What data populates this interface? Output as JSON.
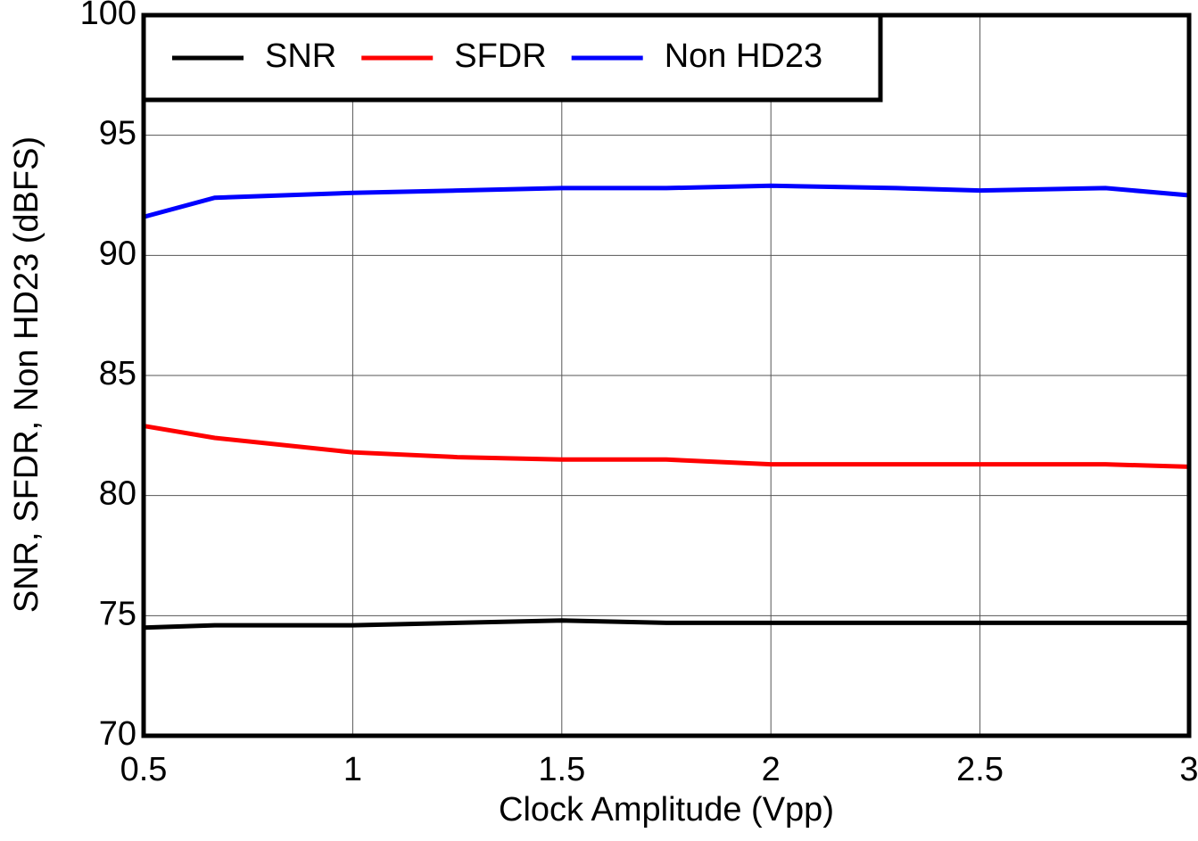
{
  "chart_data": {
    "type": "line",
    "xlabel": "Clock Amplitude (Vpp)",
    "ylabel": "SNR, SFDR, Non HD23 (dBFS)",
    "x": [
      0.5,
      0.67,
      1,
      1.25,
      1.5,
      1.75,
      2,
      2.3,
      2.5,
      2.8,
      3
    ],
    "series": [
      {
        "name": "SNR",
        "color": "#000000",
        "values": [
          74.5,
          74.6,
          74.6,
          74.7,
          74.8,
          74.7,
          74.7,
          74.7,
          74.7,
          74.7,
          74.7
        ]
      },
      {
        "name": "SFDR",
        "color": "#ff0000",
        "values": [
          82.9,
          82.4,
          81.8,
          81.6,
          81.5,
          81.5,
          81.3,
          81.3,
          81.3,
          81.3,
          81.2
        ]
      },
      {
        "name": "Non HD23",
        "color": "#0000ff",
        "values": [
          91.6,
          92.4,
          92.6,
          92.7,
          92.8,
          92.8,
          92.9,
          92.8,
          92.7,
          92.8,
          92.5
        ]
      }
    ],
    "xlim": [
      0.5,
      3
    ],
    "xticks": [
      0.5,
      1,
      1.5,
      2,
      2.5,
      3
    ],
    "ylim": [
      70,
      100
    ],
    "yticks": [
      70,
      75,
      80,
      85,
      90,
      95,
      100
    ],
    "grid": true,
    "legend": "upper left"
  }
}
